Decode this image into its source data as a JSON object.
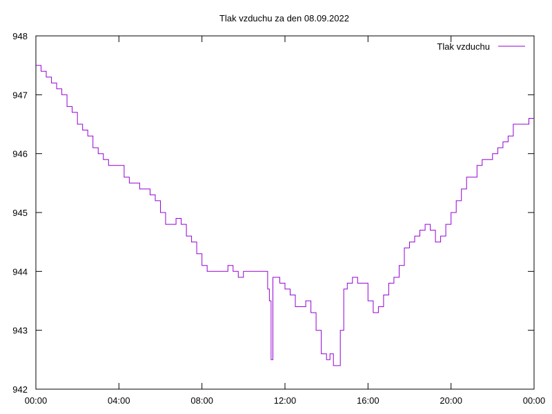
{
  "chart_data": {
    "type": "line",
    "title": "Tlak vzduchu za den 08.09.2022",
    "xlabel": "",
    "ylabel": "",
    "xlim": [
      "00:00",
      "24:00"
    ],
    "ylim": [
      942,
      948
    ],
    "x_ticks": [
      "00:00",
      "04:00",
      "08:00",
      "12:00",
      "16:00",
      "20:00",
      "00:00"
    ],
    "y_ticks": [
      "942",
      "943",
      "944",
      "945",
      "946",
      "947",
      "948"
    ],
    "grid": false,
    "legend": "top-right",
    "line_color": "#9400D3",
    "series": [
      {
        "name": "Tlak vzduchu",
        "x": [
          "00:00",
          "00:15",
          "00:30",
          "00:45",
          "01:00",
          "01:15",
          "01:30",
          "01:45",
          "02:00",
          "02:15",
          "02:30",
          "02:45",
          "03:00",
          "03:15",
          "03:30",
          "03:45",
          "04:00",
          "04:15",
          "04:30",
          "04:45",
          "05:00",
          "05:15",
          "05:30",
          "05:45",
          "06:00",
          "06:15",
          "06:30",
          "06:45",
          "07:00",
          "07:15",
          "07:30",
          "07:45",
          "08:00",
          "08:15",
          "08:30",
          "08:45",
          "09:00",
          "09:15",
          "09:30",
          "09:45",
          "10:00",
          "10:15",
          "10:30",
          "10:45",
          "11:00",
          "11:10",
          "11:15",
          "11:20",
          "11:25",
          "11:30",
          "11:45",
          "12:00",
          "12:15",
          "12:30",
          "12:45",
          "13:00",
          "13:15",
          "13:30",
          "13:45",
          "14:00",
          "14:10",
          "14:20",
          "14:30",
          "14:40",
          "14:50",
          "15:00",
          "15:15",
          "15:30",
          "15:45",
          "16:00",
          "16:15",
          "16:30",
          "16:45",
          "17:00",
          "17:15",
          "17:30",
          "17:45",
          "18:00",
          "18:15",
          "18:30",
          "18:45",
          "19:00",
          "19:15",
          "19:30",
          "19:45",
          "20:00",
          "20:15",
          "20:30",
          "20:45",
          "21:00",
          "21:15",
          "21:30",
          "21:45",
          "22:00",
          "22:15",
          "22:30",
          "22:45",
          "23:00",
          "23:15",
          "23:30",
          "23:45",
          "24:00"
        ],
        "y": [
          947.5,
          947.4,
          947.3,
          947.2,
          947.1,
          947.0,
          946.8,
          946.7,
          946.5,
          946.4,
          946.3,
          946.1,
          946.0,
          945.9,
          945.8,
          945.8,
          945.8,
          945.6,
          945.5,
          945.5,
          945.4,
          945.4,
          945.3,
          945.2,
          945.0,
          944.8,
          944.8,
          944.9,
          944.8,
          944.6,
          944.5,
          944.3,
          944.1,
          944.0,
          944.0,
          944.0,
          944.0,
          944.1,
          944.0,
          943.9,
          944.0,
          944.0,
          944.0,
          944.0,
          944.0,
          943.7,
          943.5,
          942.5,
          943.9,
          943.9,
          943.8,
          943.7,
          943.6,
          943.4,
          943.4,
          943.5,
          943.3,
          943.0,
          942.6,
          942.5,
          942.6,
          942.4,
          942.4,
          943.0,
          943.7,
          943.8,
          943.9,
          943.8,
          943.8,
          943.5,
          943.3,
          943.4,
          943.6,
          943.8,
          943.9,
          944.1,
          944.4,
          944.5,
          944.6,
          944.7,
          944.8,
          944.7,
          944.5,
          944.6,
          944.8,
          945.0,
          945.2,
          945.4,
          945.6,
          945.6,
          945.8,
          945.9,
          945.9,
          946.0,
          946.1,
          946.2,
          946.3,
          946.5,
          946.5,
          946.5,
          946.6,
          946.6
        ]
      }
    ]
  }
}
